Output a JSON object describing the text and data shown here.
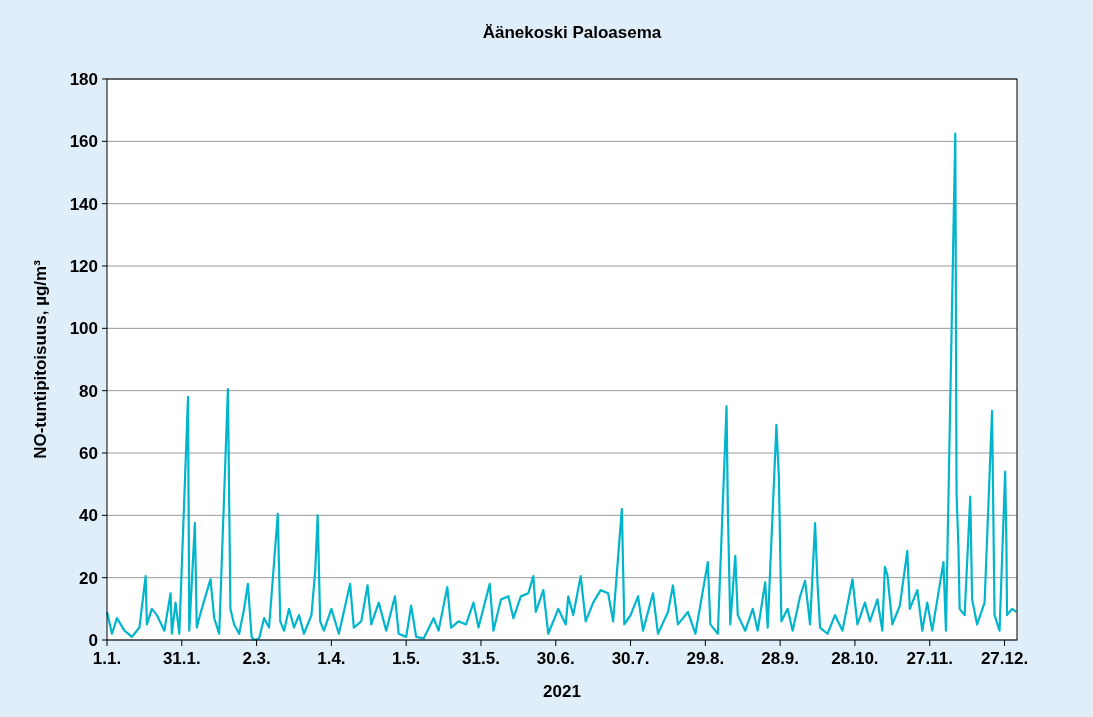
{
  "chart_data": {
    "type": "line",
    "title": "Äänekoski Paloasema",
    "xlabel": "2021",
    "ylabel": "NO-tuntipitoisuus, µg/m³",
    "xlim": [
      "2021-01-01",
      "2022-01-01"
    ],
    "xticks": [
      {
        "value": "2021-01-01",
        "label": "1.1."
      },
      {
        "value": "2021-01-31",
        "label": "31.1."
      },
      {
        "value": "2021-03-02",
        "label": "2.3."
      },
      {
        "value": "2021-04-01",
        "label": "1.4."
      },
      {
        "value": "2021-05-01",
        "label": "1.5."
      },
      {
        "value": "2021-05-31",
        "label": "31.5."
      },
      {
        "value": "2021-06-30",
        "label": "30.6."
      },
      {
        "value": "2021-07-30",
        "label": "30.7."
      },
      {
        "value": "2021-08-29",
        "label": "29.8."
      },
      {
        "value": "2021-09-28",
        "label": "28.9."
      },
      {
        "value": "2021-10-28",
        "label": "28.10."
      },
      {
        "value": "2021-11-27",
        "label": "27.11."
      },
      {
        "value": "2021-12-27",
        "label": "27.12."
      }
    ],
    "ylim": [
      0,
      180
    ],
    "yticks": [
      0,
      20,
      40,
      60,
      80,
      100,
      120,
      140,
      160,
      180
    ],
    "grid": "y",
    "marker": "none",
    "line_style": "solid",
    "series": [
      {
        "color": "#00b5cc",
        "x": [
          "2021-01-01",
          "2021-01-03",
          "2021-01-05",
          "2021-01-08",
          "2021-01-11",
          "2021-01-14",
          "2021-01-16T12:00",
          "2021-01-17",
          "2021-01-19",
          "2021-01-21",
          "2021-01-24",
          "2021-01-26T12:00",
          "2021-01-27",
          "2021-01-28T12:00",
          "2021-01-30",
          "2021-02-02T12:00",
          "2021-02-03",
          "2021-02-05T06:00",
          "2021-02-06",
          "2021-02-08",
          "2021-02-11T12:00",
          "2021-02-13",
          "2021-02-15",
          "2021-02-18T12:00",
          "2021-02-19T12:00",
          "2021-02-21",
          "2021-02-23",
          "2021-02-25",
          "2021-02-26T12:00",
          "2021-02-28",
          "2021-03-01",
          "2021-03-03",
          "2021-03-05",
          "2021-03-07",
          "2021-03-10T12:00",
          "2021-03-11T12:00",
          "2021-03-13",
          "2021-03-15",
          "2021-03-17",
          "2021-03-19",
          "2021-03-21",
          "2021-03-24",
          "2021-03-25T12:00",
          "2021-03-26T12:00",
          "2021-03-27T12:00",
          "2021-03-29",
          "2021-04-01",
          "2021-04-04",
          "2021-04-08T12:00",
          "2021-04-10",
          "2021-04-13",
          "2021-04-15T12:00",
          "2021-04-17",
          "2021-04-20",
          "2021-04-23",
          "2021-04-26T12:00",
          "2021-04-28",
          "2021-05-01",
          "2021-05-03",
          "2021-05-05",
          "2021-05-08",
          "2021-05-12",
          "2021-05-14",
          "2021-05-17T12:00",
          "2021-05-19",
          "2021-05-22",
          "2021-05-25",
          "2021-05-28",
          "2021-05-30",
          "2021-06-03T12:00",
          "2021-06-05",
          "2021-06-08",
          "2021-06-11",
          "2021-06-13",
          "2021-06-16",
          "2021-06-19",
          "2021-06-21",
          "2021-06-22",
          "2021-06-25",
          "2021-06-27",
          "2021-07-01",
          "2021-07-04",
          "2021-07-05",
          "2021-07-07",
          "2021-07-10",
          "2021-07-12",
          "2021-07-15",
          "2021-07-18",
          "2021-07-21",
          "2021-07-23",
          "2021-07-26T12:00",
          "2021-07-27T12:00",
          "2021-07-30",
          "2021-08-02",
          "2021-08-04",
          "2021-08-08",
          "2021-08-10",
          "2021-08-14",
          "2021-08-16",
          "2021-08-18",
          "2021-08-22",
          "2021-08-25",
          "2021-08-30",
          "2021-08-31",
          "2021-09-03",
          "2021-09-06T12:00",
          "2021-09-07",
          "2021-09-08",
          "2021-09-10",
          "2021-09-11",
          "2021-09-14",
          "2021-09-17",
          "2021-09-19",
          "2021-09-22",
          "2021-09-23",
          "2021-09-26T12:00",
          "2021-09-27T12:00",
          "2021-09-28T12:00",
          "2021-10-01",
          "2021-10-03",
          "2021-10-06",
          "2021-10-08",
          "2021-10-10",
          "2021-10-12",
          "2021-10-13",
          "2021-10-14",
          "2021-10-17",
          "2021-10-20",
          "2021-10-23",
          "2021-10-27",
          "2021-10-29",
          "2021-11-01",
          "2021-11-03",
          "2021-11-06",
          "2021-11-08",
          "2021-11-09",
          "2021-11-10",
          "2021-11-12",
          "2021-11-15",
          "2021-11-18",
          "2021-11-19",
          "2021-11-22",
          "2021-11-24",
          "2021-11-26",
          "2021-11-28",
          "2021-12-02T12:00",
          "2021-12-03T12:00",
          "2021-12-07T06:00",
          "2021-12-07T18:00",
          "2021-12-08T12:00",
          "2021-12-09",
          "2021-12-11",
          "2021-12-13T06:00",
          "2021-12-14",
          "2021-12-16",
          "2021-12-19",
          "2021-12-22",
          "2021-12-23",
          "2021-12-25",
          "2021-12-27T06:00",
          "2021-12-27T18:00",
          "2021-12-28",
          "2021-12-30",
          "2021-12-31T18:00"
        ],
        "values": [
          9,
          2,
          7,
          3,
          1,
          4,
          20.5,
          5,
          10,
          8,
          3,
          15,
          2,
          12,
          2,
          78,
          3,
          37.5,
          4,
          10,
          19.5,
          7,
          2,
          80.5,
          10,
          5,
          2,
          10,
          18,
          1,
          0,
          0.5,
          7,
          4,
          40.5,
          6,
          3,
          10,
          4,
          8,
          2,
          8,
          22,
          40,
          6,
          3,
          10,
          2,
          18,
          4,
          6,
          17.5,
          5,
          12,
          3,
          14,
          2,
          1,
          11,
          1,
          0.5,
          7,
          3,
          17,
          4,
          6,
          5,
          12,
          4,
          18,
          3,
          13,
          14,
          7,
          14,
          15,
          20.5,
          9,
          16,
          2,
          10,
          5,
          14,
          8,
          20.5,
          6,
          12,
          16,
          15,
          6,
          42,
          5,
          8,
          14,
          3,
          15,
          2,
          9,
          17.5,
          5,
          9,
          2,
          25,
          5,
          2,
          75,
          43,
          5,
          27,
          8,
          3,
          10,
          3,
          18.5,
          4,
          69,
          52,
          6,
          10,
          3,
          14,
          19,
          5,
          37.5,
          18,
          4,
          2,
          8,
          3,
          19.5,
          5,
          12,
          6,
          13,
          3,
          23.5,
          21,
          5,
          11,
          28.5,
          10,
          16,
          3,
          12,
          3,
          25,
          3,
          162.5,
          47,
          30,
          10,
          8,
          46,
          13,
          5,
          12,
          73.5,
          8,
          3,
          54,
          31,
          8,
          10,
          9
        ]
      }
    ]
  }
}
